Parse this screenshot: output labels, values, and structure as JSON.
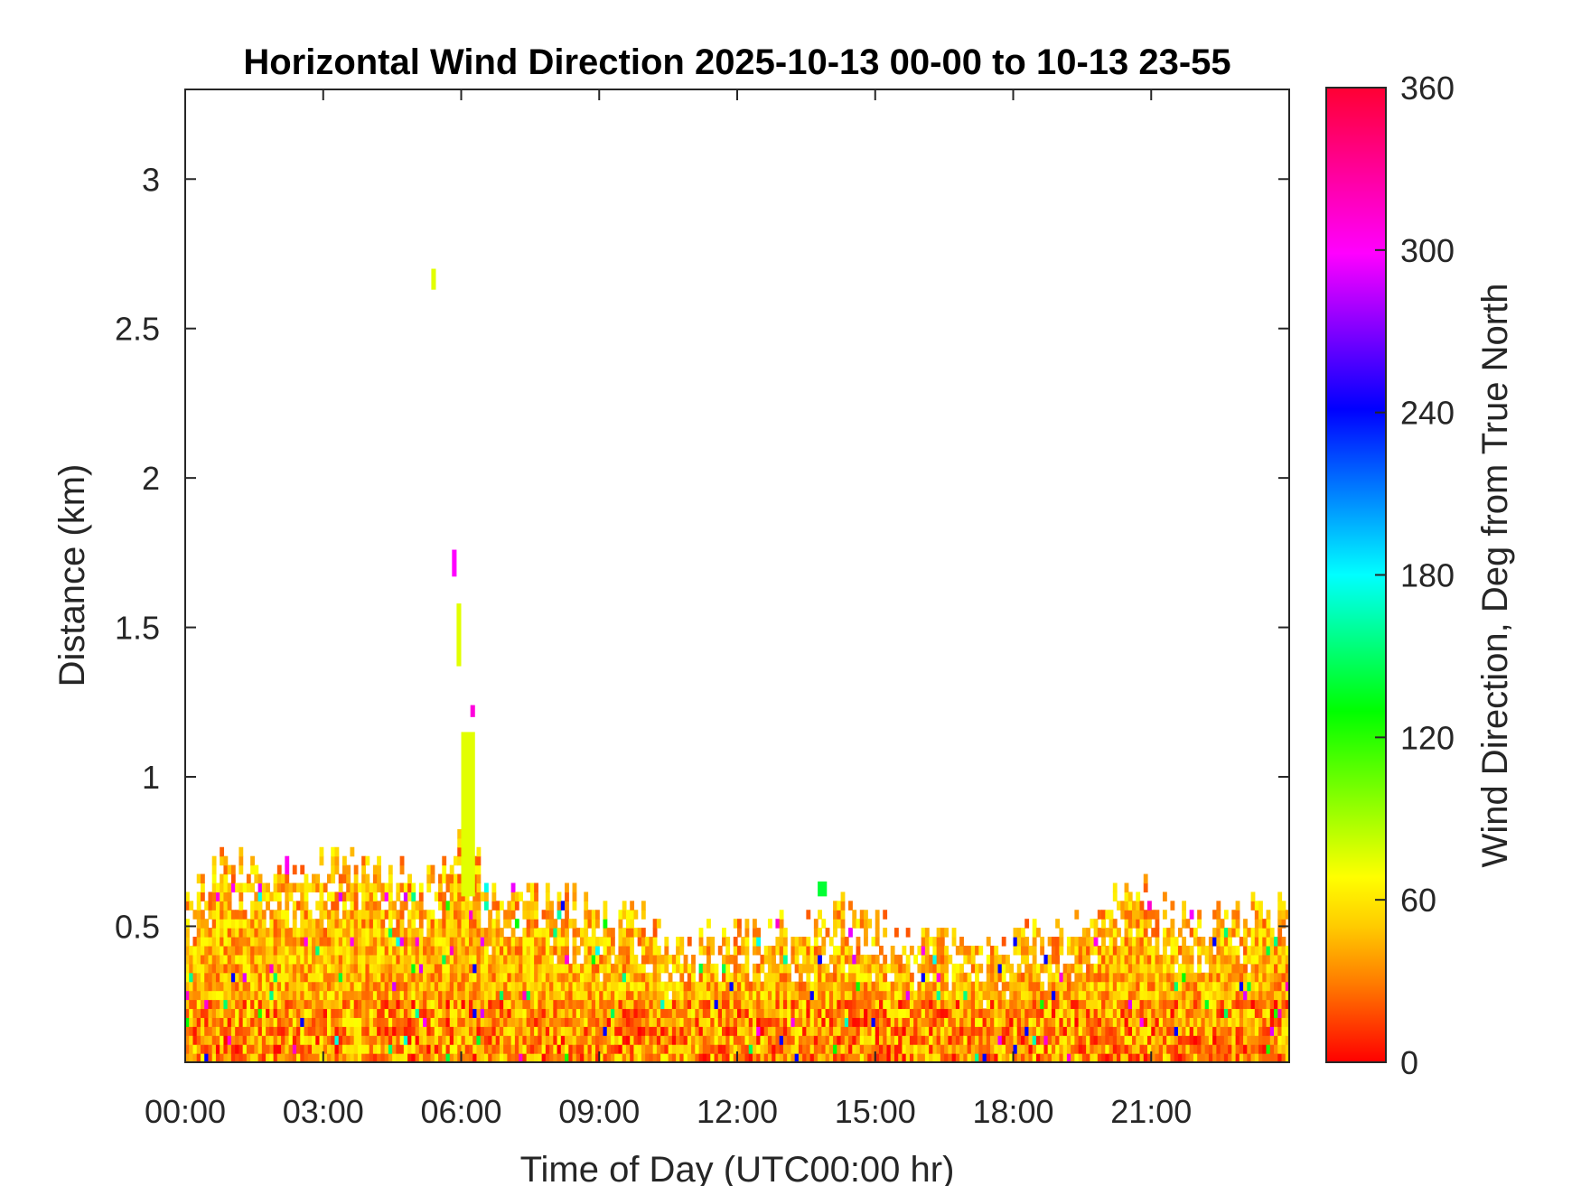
{
  "chart_data": {
    "type": "heatmap",
    "title": "Horizontal Wind Direction 2025-10-13 00-00 to 10-13 23-55",
    "xlabel": "Time of Day (UTC00:00 hr)",
    "ylabel": "Distance (km)",
    "colorbar_label": "Wind Direction, Deg from True North",
    "x_tick_labels": [
      "00:00",
      "03:00",
      "06:00",
      "09:00",
      "12:00",
      "15:00",
      "18:00",
      "21:00"
    ],
    "x_tick_hours": [
      0,
      3,
      6,
      9,
      12,
      15,
      18,
      21
    ],
    "xlim_hours": [
      0,
      24
    ],
    "y_tick_labels": [
      "0.5",
      "1",
      "1.5",
      "2",
      "2.5",
      "3"
    ],
    "y_tick_values": [
      0.5,
      1,
      1.5,
      2,
      2.5,
      3
    ],
    "ylim_km": [
      0.045,
      3.3
    ],
    "colorbar_tick_labels": [
      "0",
      "60",
      "120",
      "180",
      "240",
      "300",
      "360"
    ],
    "colorbar_tick_values": [
      0,
      60,
      120,
      180,
      240,
      300,
      360
    ],
    "clim": [
      0,
      360
    ],
    "colormap": [
      "#ff0000",
      "#ffa500",
      "#ffff00",
      "#00ff00",
      "#00ffff",
      "#0000ff",
      "#ff00ff",
      "#ff0033"
    ],
    "grid": false,
    "dominant_direction_deg": [
      20,
      70
    ],
    "data_top_km_by_hour": [
      {
        "hour": 0.0,
        "top_km": 0.62
      },
      {
        "hour": 0.5,
        "top_km": 0.66
      },
      {
        "hour": 1.0,
        "top_km": 0.7
      },
      {
        "hour": 1.5,
        "top_km": 0.68
      },
      {
        "hour": 2.0,
        "top_km": 0.66
      },
      {
        "hour": 2.5,
        "top_km": 0.7
      },
      {
        "hour": 3.0,
        "top_km": 0.68
      },
      {
        "hour": 3.5,
        "top_km": 0.7
      },
      {
        "hour": 4.0,
        "top_km": 0.68
      },
      {
        "hour": 4.5,
        "top_km": 0.66
      },
      {
        "hour": 5.0,
        "top_km": 0.62
      },
      {
        "hour": 5.5,
        "top_km": 0.62
      },
      {
        "hour": 6.0,
        "top_km": 0.85
      },
      {
        "hour": 6.3,
        "top_km": 0.7
      },
      {
        "hour": 6.7,
        "top_km": 0.58
      },
      {
        "hour": 7.0,
        "top_km": 0.56
      },
      {
        "hour": 7.5,
        "top_km": 0.58
      },
      {
        "hour": 8.0,
        "top_km": 0.56
      },
      {
        "hour": 8.5,
        "top_km": 0.56
      },
      {
        "hour": 9.0,
        "top_km": 0.52
      },
      {
        "hour": 9.5,
        "top_km": 0.56
      },
      {
        "hour": 10.0,
        "top_km": 0.48
      },
      {
        "hour": 10.5,
        "top_km": 0.45
      },
      {
        "hour": 11.0,
        "top_km": 0.44
      },
      {
        "hour": 11.5,
        "top_km": 0.46
      },
      {
        "hour": 12.0,
        "top_km": 0.48
      },
      {
        "hour": 12.5,
        "top_km": 0.48
      },
      {
        "hour": 13.0,
        "top_km": 0.48
      },
      {
        "hour": 13.5,
        "top_km": 0.5
      },
      {
        "hour": 14.0,
        "top_km": 0.52
      },
      {
        "hour": 14.5,
        "top_km": 0.52
      },
      {
        "hour": 15.0,
        "top_km": 0.5
      },
      {
        "hour": 15.5,
        "top_km": 0.46
      },
      {
        "hour": 16.0,
        "top_km": 0.45
      },
      {
        "hour": 16.5,
        "top_km": 0.44
      },
      {
        "hour": 17.0,
        "top_km": 0.42
      },
      {
        "hour": 17.5,
        "top_km": 0.42
      },
      {
        "hour": 18.0,
        "top_km": 0.44
      },
      {
        "hour": 18.5,
        "top_km": 0.46
      },
      {
        "hour": 19.0,
        "top_km": 0.48
      },
      {
        "hour": 19.5,
        "top_km": 0.52
      },
      {
        "hour": 20.0,
        "top_km": 0.56
      },
      {
        "hour": 20.5,
        "top_km": 0.62
      },
      {
        "hour": 21.0,
        "top_km": 0.6
      },
      {
        "hour": 21.5,
        "top_km": 0.54
      },
      {
        "hour": 22.0,
        "top_km": 0.52
      },
      {
        "hour": 22.5,
        "top_km": 0.52
      },
      {
        "hour": 23.0,
        "top_km": 0.54
      },
      {
        "hour": 23.5,
        "top_km": 0.54
      },
      {
        "hour": 24.0,
        "top_km": 0.54
      }
    ],
    "isolated_features": [
      {
        "hour_start": 5.35,
        "hour_end": 5.45,
        "km_bottom": 2.63,
        "km_top": 2.7,
        "direction_deg": 75
      },
      {
        "hour_start": 5.8,
        "hour_end": 5.9,
        "km_bottom": 1.67,
        "km_top": 1.76,
        "direction_deg": 300
      },
      {
        "hour_start": 5.9,
        "hour_end": 6.0,
        "km_bottom": 1.37,
        "km_top": 1.58,
        "direction_deg": 75
      },
      {
        "hour_start": 6.2,
        "hour_end": 6.3,
        "km_bottom": 1.2,
        "km_top": 1.24,
        "direction_deg": 310
      },
      {
        "hour_start": 6.0,
        "hour_end": 6.3,
        "km_bottom": 0.6,
        "km_top": 1.15,
        "direction_deg": 75
      },
      {
        "hour_start": 13.75,
        "hour_end": 13.95,
        "km_bottom": 0.6,
        "km_top": 0.65,
        "direction_deg": 140
      }
    ]
  }
}
